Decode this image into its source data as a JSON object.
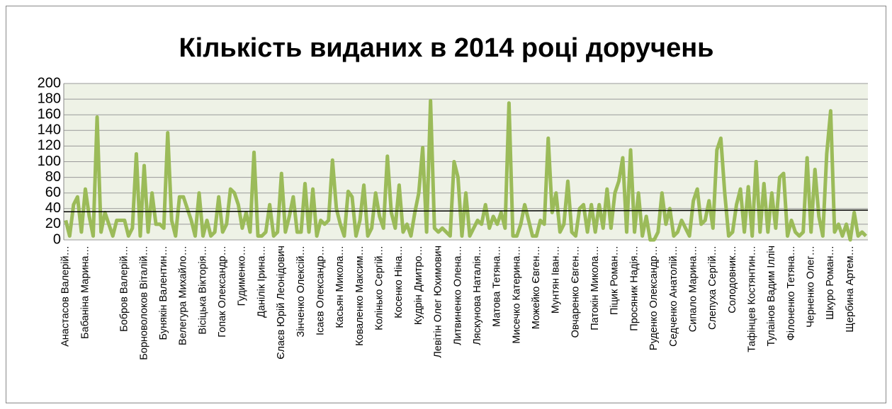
{
  "chart_data": {
    "type": "line",
    "title": "Кількість виданих в  2014 році доручень",
    "categories": [
      "Анастасов Валерій…",
      null,
      null,
      null,
      null,
      "Бабаніна Марина…",
      null,
      null,
      null,
      null,
      null,
      null,
      null,
      null,
      null,
      "Бобров Валерій…",
      null,
      null,
      null,
      null,
      "Борноволоков Віталій…",
      null,
      null,
      null,
      null,
      "Бунякін Валентин…",
      null,
      null,
      null,
      null,
      "Велегура Михайло…",
      null,
      null,
      null,
      null,
      "Вісіцька Вікторія…",
      null,
      null,
      null,
      null,
      "Гопак Олександр…",
      null,
      null,
      null,
      null,
      "Гудименко…",
      null,
      null,
      null,
      null,
      "Данілік Ірина…",
      null,
      null,
      null,
      null,
      "Єлаєв Юрій Леонідович",
      null,
      null,
      null,
      null,
      "Зінченко Олексій…",
      null,
      null,
      null,
      null,
      "Ісаєв Олександр…",
      null,
      null,
      null,
      null,
      "Касьян Микола…",
      null,
      null,
      null,
      null,
      "Коваленко Максим…",
      null,
      null,
      null,
      null,
      "Колінько Сергій…",
      null,
      null,
      null,
      null,
      "Косенко Ніна…",
      null,
      null,
      null,
      null,
      "Кудрін Дмитро…",
      null,
      null,
      null,
      null,
      "Левітін Олег Юхимович",
      null,
      null,
      null,
      null,
      "Литвиненко Олена…",
      null,
      null,
      null,
      null,
      "Ляскунова Наталія…",
      null,
      null,
      null,
      null,
      "Матова Тетяна…",
      null,
      null,
      null,
      null,
      "Мисечко Катерина…",
      null,
      null,
      null,
      null,
      "Можейко Євген…",
      null,
      null,
      null,
      null,
      "Мунтян Іван…",
      null,
      null,
      null,
      null,
      "Овчаренко Євген…",
      null,
      null,
      null,
      null,
      "Патокін Микола…",
      null,
      null,
      null,
      null,
      "Піцик Роман…",
      null,
      null,
      null,
      null,
      "Просяник Надія…",
      null,
      null,
      null,
      null,
      "Руденко Олександр…",
      null,
      null,
      null,
      null,
      "Седченко Анатолій…",
      null,
      null,
      null,
      null,
      "Сипало Марина…",
      null,
      null,
      null,
      null,
      "Слепуха Сергій…",
      null,
      null,
      null,
      null,
      "Солодовник…",
      null,
      null,
      null,
      null,
      "Тафінцев Костянтин…",
      null,
      null,
      null,
      null,
      "Тулаінов Вадим Ілліч",
      null,
      null,
      null,
      null,
      "Філоненко Тетяна…",
      null,
      null,
      null,
      null,
      "Черненко Олег…",
      null,
      null,
      null,
      null,
      "Шкуро Роман…",
      null,
      null,
      null,
      null,
      "Щербина Артем…",
      null,
      null,
      null,
      null
    ],
    "series": [
      {
        "color": "#9bbb59",
        "values": [
          25,
          5,
          45,
          55,
          10,
          65,
          30,
          5,
          157,
          10,
          35,
          20,
          5,
          25,
          25,
          25,
          5,
          15,
          110,
          5,
          95,
          10,
          60,
          20,
          20,
          15,
          137,
          25,
          5,
          55,
          55,
          40,
          25,
          5,
          60,
          5,
          25,
          5,
          10,
          55,
          10,
          20,
          65,
          60,
          45,
          15,
          35,
          10,
          112,
          5,
          5,
          10,
          45,
          5,
          10,
          85,
          10,
          30,
          55,
          10,
          10,
          72,
          10,
          65,
          5,
          25,
          20,
          25,
          102,
          40,
          20,
          5,
          62,
          55,
          5,
          25,
          70,
          5,
          15,
          60,
          30,
          15,
          107,
          35,
          15,
          70,
          10,
          20,
          5,
          35,
          60,
          118,
          10,
          178,
          15,
          10,
          15,
          10,
          5,
          100,
          80,
          5,
          60,
          5,
          15,
          25,
          20,
          45,
          15,
          30,
          20,
          35,
          15,
          175,
          5,
          5,
          20,
          45,
          25,
          5,
          5,
          25,
          20,
          130,
          35,
          60,
          10,
          20,
          75,
          10,
          5,
          40,
          45,
          10,
          45,
          10,
          45,
          15,
          65,
          15,
          60,
          75,
          105,
          10,
          115,
          10,
          60,
          5,
          30,
          0,
          0,
          10,
          60,
          20,
          40,
          5,
          10,
          25,
          15,
          5,
          50,
          65,
          20,
          25,
          50,
          15,
          115,
          130,
          60,
          5,
          10,
          45,
          65,
          10,
          68,
          5,
          100,
          10,
          72,
          10,
          60,
          15,
          80,
          85,
          5,
          25,
          10,
          5,
          10,
          105,
          10,
          90,
          30,
          5,
          110,
          165,
          10,
          20,
          5,
          20,
          0,
          35,
          5,
          10,
          5
        ]
      }
    ],
    "trendline": {
      "color": "#000000",
      "values": [
        36,
        38
      ]
    },
    "ylim": [
      0,
      200
    ],
    "yticks": [
      0,
      20,
      40,
      60,
      80,
      100,
      120,
      140,
      160,
      180,
      200
    ],
    "grid": true
  }
}
